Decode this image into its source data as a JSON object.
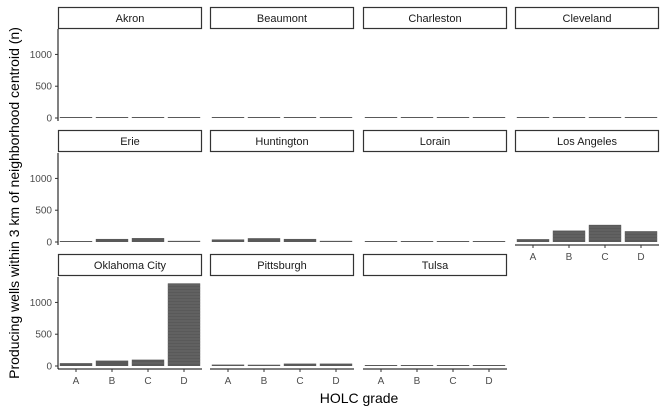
{
  "chart_data": {
    "type": "bar",
    "layout": "facet-grid",
    "xlabel": "HOLC grade",
    "ylabel": "Producing wells within 3 km of neighborhood centroid (n)",
    "categories": [
      "A",
      "B",
      "C",
      "D"
    ],
    "ylim": [
      0,
      1400
    ],
    "yticks": [
      0,
      500,
      1000
    ],
    "grid": false,
    "colors": {
      "bar": "#595959",
      "stripe": "#7a7a7a"
    },
    "facets": [
      {
        "name": "Akron",
        "values": [
          0,
          3,
          2,
          0
        ]
      },
      {
        "name": "Beaumont",
        "values": [
          0,
          0,
          0,
          0
        ]
      },
      {
        "name": "Charleston",
        "values": [
          0,
          2,
          2,
          1
        ]
      },
      {
        "name": "Cleveland",
        "values": [
          3,
          12,
          6,
          1
        ]
      },
      {
        "name": "Erie",
        "values": [
          10,
          48,
          62,
          18
        ]
      },
      {
        "name": "Huntington",
        "values": [
          40,
          60,
          48,
          18
        ]
      },
      {
        "name": "Lorain",
        "values": [
          0,
          3,
          3,
          0
        ]
      },
      {
        "name": "Los Angeles",
        "values": [
          45,
          180,
          270,
          170
        ]
      },
      {
        "name": "Oklahoma City",
        "values": [
          45,
          85,
          100,
          1300
        ]
      },
      {
        "name": "Pittsburgh",
        "values": [
          22,
          20,
          38,
          38
        ]
      },
      {
        "name": "Tulsa",
        "values": [
          2,
          2,
          12,
          12
        ]
      }
    ]
  }
}
